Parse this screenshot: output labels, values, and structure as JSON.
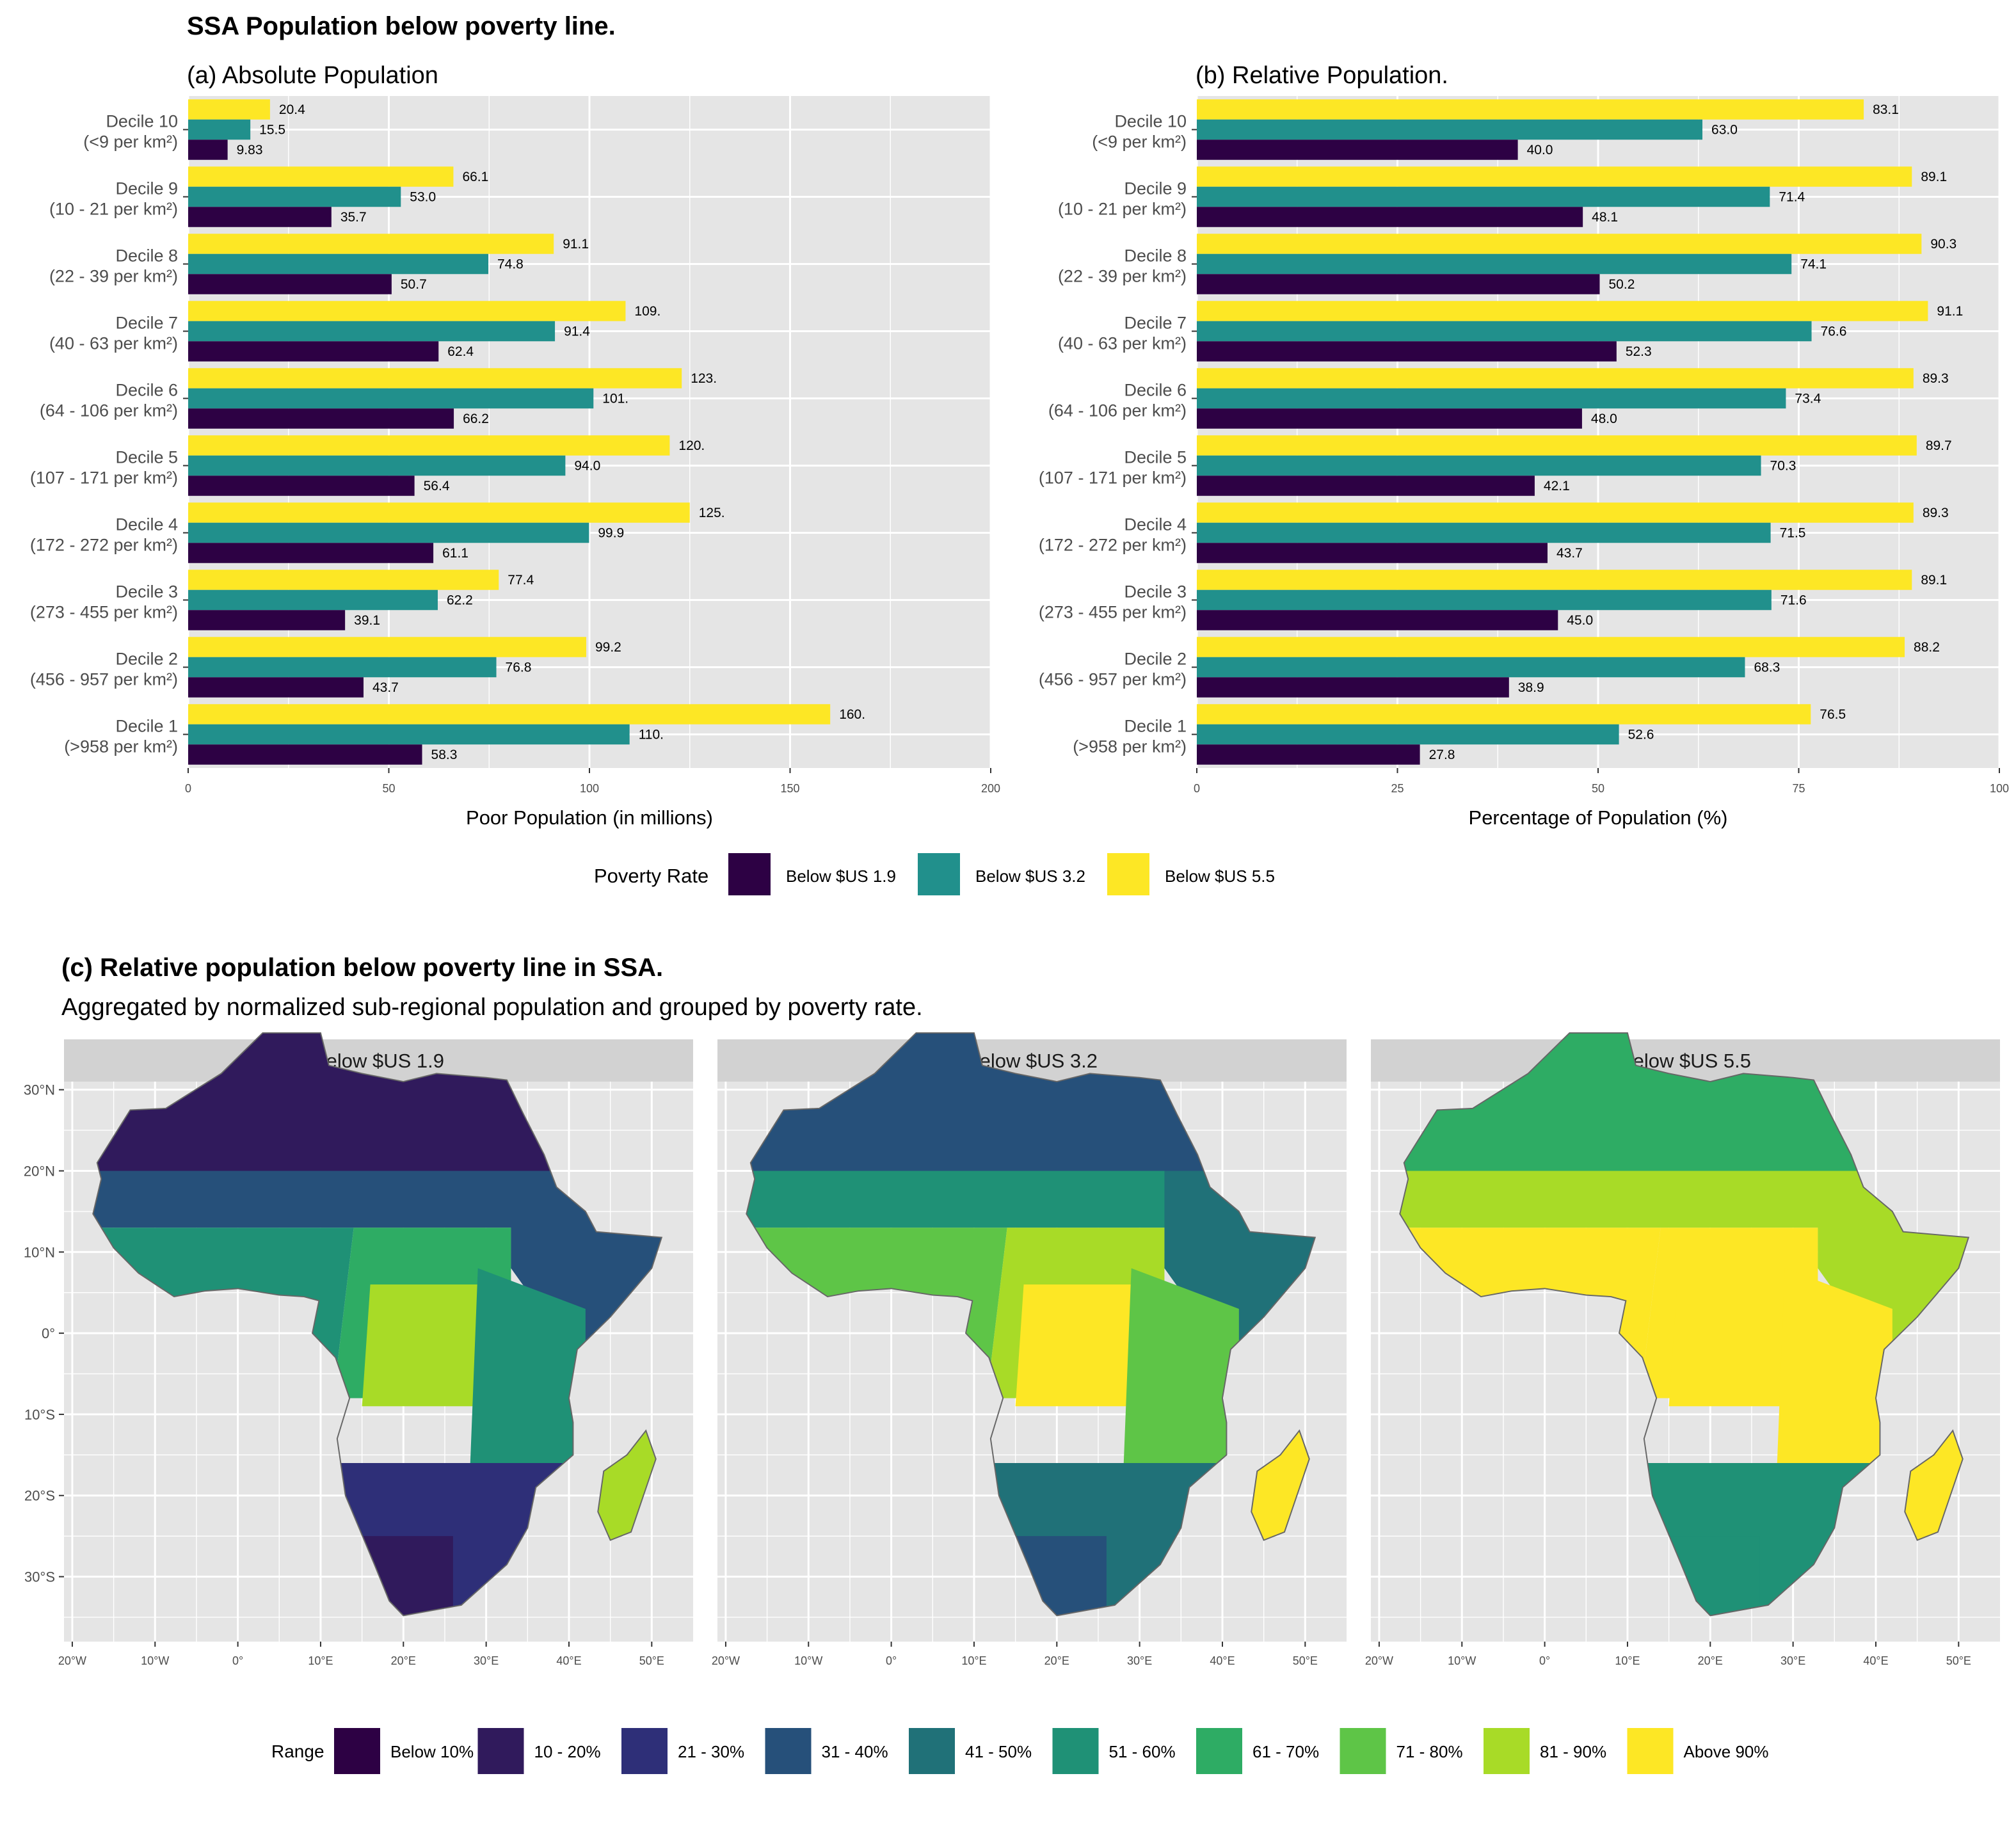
{
  "page": {
    "title": "SSA Population below poverty line.",
    "colors": {
      "panel_bg": "#e5e5e5",
      "strip_bg": "#d2d2d2",
      "grid": "#ffffff"
    }
  },
  "chart_data": [
    {
      "type": "bar",
      "title": "(a) Absolute Population",
      "xlabel": "Poor Population (in millions)",
      "ylabel": "",
      "xlim": [
        0,
        200
      ],
      "xticks": [
        0,
        50,
        100,
        150,
        200
      ],
      "categories": [
        [
          "Decile 10",
          "(<9 per km²)"
        ],
        [
          "Decile 9",
          "(10 - 21 per km²)"
        ],
        [
          "Decile 8",
          "(22 - 39 per km²)"
        ],
        [
          "Decile 7",
          "(40 - 63 per km²)"
        ],
        [
          "Decile 6",
          "(64 - 106 per km²)"
        ],
        [
          "Decile 5",
          "(107 - 171 per km²)"
        ],
        [
          "Decile 4",
          "(172 - 272 per km²)"
        ],
        [
          "Decile 3",
          "(273 - 455 per km²)"
        ],
        [
          "Decile 2",
          "(456 - 957 per km²)"
        ],
        [
          "Decile 1",
          "(>958 per km²)"
        ]
      ],
      "series": [
        {
          "name": "Below $US 5.5",
          "color": "#fde725",
          "values": [
            20.4,
            66.1,
            91.1,
            109,
            123,
            120,
            125,
            77.4,
            99.2,
            160
          ],
          "labels": [
            "20.4",
            "66.1",
            "91.1",
            "109.",
            "123.",
            "120.",
            "125.",
            "77.4",
            "99.2",
            "160."
          ]
        },
        {
          "name": "Below $US 3.2",
          "color": "#21908c",
          "values": [
            15.5,
            53.0,
            74.8,
            91.4,
            101,
            94.0,
            99.9,
            62.2,
            76.8,
            110
          ],
          "labels": [
            "15.5",
            "53.0",
            "74.8",
            "91.4",
            "101.",
            "94.0",
            "99.9",
            "62.2",
            "76.8",
            "110."
          ]
        },
        {
          "name": "Below $US 1.9",
          "color": "#2d0144",
          "values": [
            9.83,
            35.7,
            50.7,
            62.4,
            66.2,
            56.4,
            61.1,
            39.1,
            43.7,
            58.3
          ],
          "labels": [
            "9.83",
            "35.7",
            "50.7",
            "62.4",
            "66.2",
            "56.4",
            "61.1",
            "39.1",
            "43.7",
            "58.3"
          ]
        }
      ]
    },
    {
      "type": "bar",
      "title": "(b) Relative Population.",
      "xlabel": "Percentage of Population (%)",
      "ylabel": "",
      "xlim": [
        0,
        100
      ],
      "xticks": [
        0,
        25,
        50,
        75,
        100
      ],
      "categories": [
        [
          "Decile 10",
          "(<9 per km²)"
        ],
        [
          "Decile 9",
          "(10 - 21 per km²)"
        ],
        [
          "Decile 8",
          "(22 - 39 per km²)"
        ],
        [
          "Decile 7",
          "(40 - 63 per km²)"
        ],
        [
          "Decile 6",
          "(64 - 106 per km²)"
        ],
        [
          "Decile 5",
          "(107 - 171 per km²)"
        ],
        [
          "Decile 4",
          "(172 - 272 per km²)"
        ],
        [
          "Decile 3",
          "(273 - 455 per km²)"
        ],
        [
          "Decile 2",
          "(456 - 957 per km²)"
        ],
        [
          "Decile 1",
          "(>958 per km²)"
        ]
      ],
      "series": [
        {
          "name": "Below $US 5.5",
          "color": "#fde725",
          "values": [
            83.1,
            89.1,
            90.3,
            91.1,
            89.3,
            89.7,
            89.3,
            89.1,
            88.2,
            76.5
          ],
          "labels": [
            "83.1",
            "89.1",
            "90.3",
            "91.1",
            "89.3",
            "89.7",
            "89.3",
            "89.1",
            "88.2",
            "76.5"
          ]
        },
        {
          "name": "Below $US 3.2",
          "color": "#21908c",
          "values": [
            63.0,
            71.4,
            74.1,
            76.6,
            73.4,
            70.3,
            71.5,
            71.6,
            68.3,
            52.6
          ],
          "labels": [
            "63.0",
            "71.4",
            "74.1",
            "76.6",
            "73.4",
            "70.3",
            "71.5",
            "71.6",
            "68.3",
            "52.6"
          ]
        },
        {
          "name": "Below $US 1.9",
          "color": "#2d0144",
          "values": [
            40.0,
            48.1,
            50.2,
            52.3,
            48.0,
            42.1,
            43.7,
            45.0,
            38.9,
            27.8
          ],
          "labels": [
            "40.0",
            "48.1",
            "50.2",
            "52.3",
            "48.0",
            "42.1",
            "43.7",
            "45.0",
            "38.9",
            "27.8"
          ]
        }
      ]
    },
    {
      "type": "map",
      "title": "(c) Relative population below poverty line in SSA.",
      "subtitle": "Aggregated by normalized sub-regional population and grouped by poverty rate.",
      "facets": [
        "Below $US 1.9",
        "Below $US 3.2",
        "Below $US 5.5"
      ],
      "lon_ticks": [
        "20°W",
        "10°W",
        "0°",
        "10°E",
        "20°E",
        "30°E",
        "40°E",
        "50°E"
      ],
      "lat_ticks": [
        "30°N",
        "20°N",
        "10°N",
        "0°",
        "10°S",
        "20°S",
        "30°S"
      ],
      "lon_range": [
        -21,
        55
      ],
      "lat_range": [
        -38,
        31
      ],
      "facet_color_index": [
        {
          "north": 1,
          "sahel": 3,
          "gulf": 5,
          "horn": 3,
          "central": 6,
          "congo": 8,
          "east": 5,
          "south": 2,
          "cape": 1,
          "madagascar": 8
        },
        {
          "north": 3,
          "sahel": 5,
          "gulf": 7,
          "horn": 4,
          "central": 8,
          "congo": 9,
          "east": 7,
          "south": 4,
          "cape": 3,
          "madagascar": 9
        },
        {
          "north": 6,
          "sahel": 8,
          "gulf": 9,
          "horn": 8,
          "central": 9,
          "congo": 9,
          "east": 9,
          "south": 5,
          "cape": 5,
          "madagascar": 9
        }
      ]
    }
  ],
  "legend_poverty": {
    "title": "Poverty Rate",
    "items": [
      {
        "label": "Below $US 1.9",
        "color": "#2d0144"
      },
      {
        "label": "Below $US 3.2",
        "color": "#21908c"
      },
      {
        "label": "Below $US 5.5",
        "color": "#fde725"
      }
    ]
  },
  "legend_range": {
    "title": "Range",
    "items": [
      {
        "label": "Below 10%",
        "color": "#2d0144"
      },
      {
        "label": "10 - 20%",
        "color": "#301a5c"
      },
      {
        "label": "21 - 30%",
        "color": "#2e2f78"
      },
      {
        "label": "31 - 40%",
        "color": "#26507a"
      },
      {
        "label": "41 - 50%",
        "color": "#207178"
      },
      {
        "label": "51 - 60%",
        "color": "#1f9176"
      },
      {
        "label": "61 - 70%",
        "color": "#2eac64"
      },
      {
        "label": "71 - 80%",
        "color": "#5ec547"
      },
      {
        "label": "81 - 90%",
        "color": "#a8db27"
      },
      {
        "label": "Above 90%",
        "color": "#fde725"
      }
    ]
  }
}
